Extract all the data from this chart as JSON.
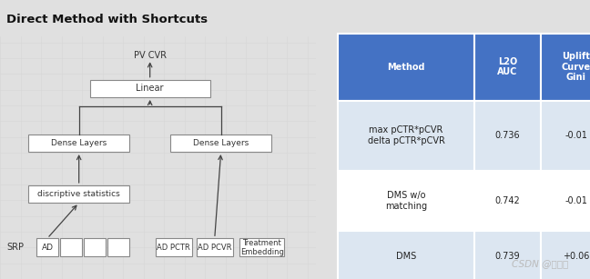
{
  "title": "Direct Method with Shortcuts",
  "title_bg": "#e0e0e0",
  "diagram_bg": "#ebebeb",
  "grid_color": "#d8d8d8",
  "table_header_bg": "#4472c4",
  "table_header_fg": "#ffffff",
  "table_row1_bg": "#dce6f1",
  "table_row2_bg": "#ffffff",
  "table_row3_bg": "#dce6f1",
  "table_headers": [
    "Method",
    "L2O\nAUC",
    "Uplift\nCurve\nGini"
  ],
  "table_rows": [
    [
      "max pCTR*pCVR\ndelta pCTR*pCVR",
      "0.736",
      "-0.01"
    ],
    [
      "DMS w/o\nmatching",
      "0.742",
      "-0.01"
    ],
    [
      "DMS",
      "0.739",
      "+0.06"
    ]
  ],
  "watermark": "CSDN @悟乙己",
  "box_edge": "#888888",
  "box_bg": "#ffffff",
  "arrow_color": "#444444",
  "label_srp": "SRP",
  "label_ad": "AD",
  "label_ad_pctr": "AD PCTR",
  "label_ad_pcvr": "AD PCVR",
  "label_treatment": "Treatment\nEmbedding",
  "label_discriptive": "discriptive statistics",
  "label_dense1": "Dense Layers",
  "label_dense2": "Dense Layers",
  "label_linear": "Linear",
  "label_output": "PV CVR",
  "overall_bg": "#e0e0e0"
}
